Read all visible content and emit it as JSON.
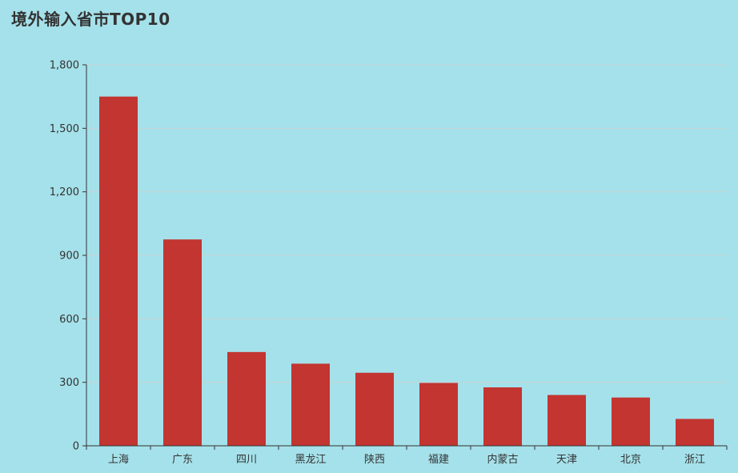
{
  "colors": {
    "background": "#a5e1ea",
    "bar": "#c23531",
    "grid": "#c8d4d8",
    "axis": "#333333",
    "text": "#333333"
  },
  "chart_data": {
    "type": "bar",
    "title": "境外输入省市TOP10",
    "categories": [
      "上海",
      "广东",
      "四川",
      "黑龙江",
      "陕西",
      "福建",
      "内蒙古",
      "天津",
      "北京",
      "浙江"
    ],
    "series": [
      {
        "values": [
          1650,
          975,
          443,
          388,
          345,
          297,
          276,
          240,
          228,
          127
        ]
      }
    ],
    "ylim": [
      0,
      1800
    ],
    "yticks": [
      0,
      300,
      600,
      900,
      1200,
      1500,
      1800
    ],
    "ytick_labels": [
      "0",
      "300",
      "600",
      "900",
      "1,200",
      "1,500",
      "1,800"
    ],
    "grid": true,
    "legend": "none",
    "xlabel": "",
    "ylabel": ""
  }
}
